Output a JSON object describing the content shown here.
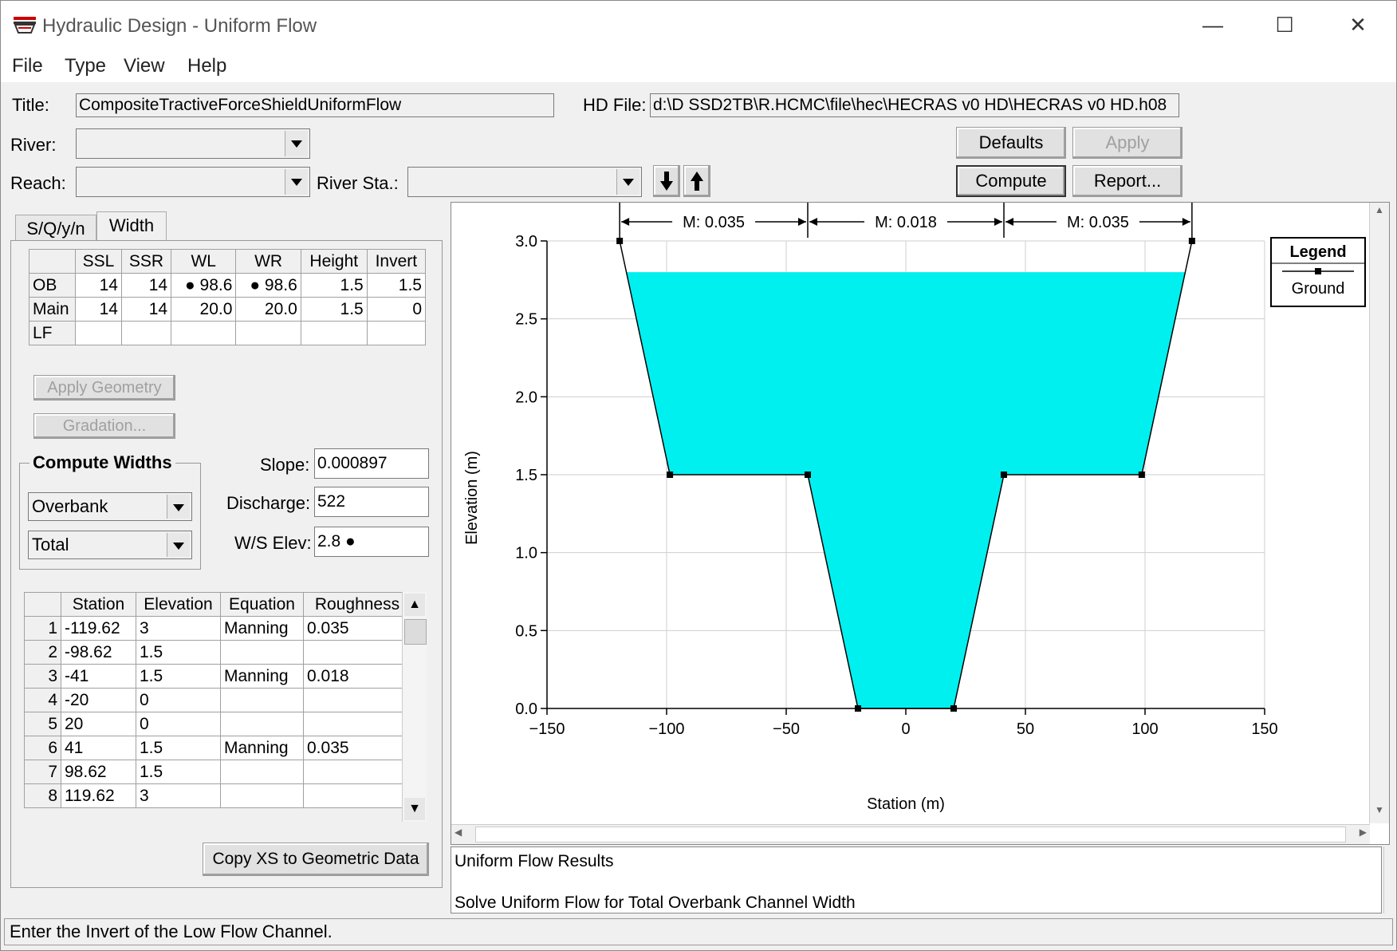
{
  "window": {
    "title": "Hydraulic Design - Uniform Flow",
    "min": "—",
    "max": "☐",
    "close": "✕"
  },
  "menu": [
    "File",
    "Type",
    "View",
    "Help"
  ],
  "header": {
    "title_label": "Title:",
    "title_value": "CompositeTractiveForceShieldUniformFlow",
    "hd_label": "HD File:",
    "hd_value": "d:\\D  SSD2TB\\R.HCMC\\file\\hec\\HECRAS  v0  HD\\HECRAS  v0  HD.h08",
    "river_label": "River:",
    "reach_label": "Reach:",
    "river_sta_label": "River Sta.:",
    "river_value": "",
    "reach_value": "",
    "river_sta_value": ""
  },
  "buttons": {
    "defaults": "Defaults",
    "apply": "Apply",
    "compute": "Compute",
    "report": "Report...",
    "apply_geometry": "Apply Geometry",
    "gradation": "Gradation...",
    "copy_xs": "Copy XS to Geometric Data"
  },
  "tabs": [
    "S/Q/y/n",
    "Width"
  ],
  "width_table": {
    "headers": [
      "",
      "SSL",
      "SSR",
      "WL",
      "WR",
      "Height",
      "Invert"
    ],
    "rows": [
      [
        "OB",
        "14",
        "14",
        "● 98.6",
        "● 98.6",
        "1.5",
        "1.5"
      ],
      [
        "Main",
        "14",
        "14",
        "20.0",
        "20.0",
        "1.5",
        "0"
      ],
      [
        "LF",
        "",
        "",
        "",
        "",
        "",
        ""
      ]
    ]
  },
  "compute_widths": {
    "label": "Compute Widths",
    "option1": "Overbank",
    "option2": "Total"
  },
  "params": {
    "slope_label": "Slope:",
    "slope_value": "0.000897",
    "discharge_label": "Discharge:",
    "discharge_value": "522",
    "ws_label": "W/S Elev:",
    "ws_value": "2.8 ●"
  },
  "xs_table": {
    "headers": [
      "",
      "Station",
      "Elevation",
      "Equation",
      "Roughness"
    ],
    "rows": [
      [
        "1",
        "-119.62",
        "3",
        "Manning",
        "0.035"
      ],
      [
        "2",
        "-98.62",
        "1.5",
        "",
        ""
      ],
      [
        "3",
        "-41",
        "1.5",
        "Manning",
        "0.018"
      ],
      [
        "4",
        "-20",
        "0",
        "",
        ""
      ],
      [
        "5",
        "20",
        "0",
        "",
        ""
      ],
      [
        "6",
        "41",
        "1.5",
        "Manning",
        "0.035"
      ],
      [
        "7",
        "98.62",
        "1.5",
        "",
        ""
      ],
      [
        "8",
        "119.62",
        "3",
        "",
        ""
      ]
    ]
  },
  "chart_data": {
    "type": "area",
    "xlabel": "Station (m)",
    "ylabel": "Elevation (m)",
    "xlim": [
      -150,
      150
    ],
    "ylim": [
      0,
      3
    ],
    "x_ticks": [
      "−150",
      "−100",
      "−50",
      "0",
      "50",
      "100",
      "150"
    ],
    "y_ticks": [
      "0.0",
      "0.5",
      "1.0",
      "1.5",
      "2.0",
      "2.5",
      "3.0"
    ],
    "ground": {
      "x": [
        -119.62,
        -98.62,
        -41,
        -20,
        20,
        41,
        98.62,
        119.62
      ],
      "y": [
        3,
        1.5,
        1.5,
        0,
        0,
        1.5,
        1.5,
        3
      ]
    },
    "water_surface": 2.8,
    "water_color": "#00f0f0",
    "roughness_labels": [
      "M: 0.035",
      "M: 0.018",
      "M: 0.035"
    ],
    "roughness_breaks": [
      -119.62,
      -41,
      41,
      119.62
    ],
    "legend": {
      "title": "Legend",
      "entry": "Ground"
    }
  },
  "results": {
    "title": "Uniform Flow Results",
    "message": "Solve Uniform Flow for Total Overbank Channel Width"
  },
  "status": "Enter the Invert of the Low Flow Channel."
}
